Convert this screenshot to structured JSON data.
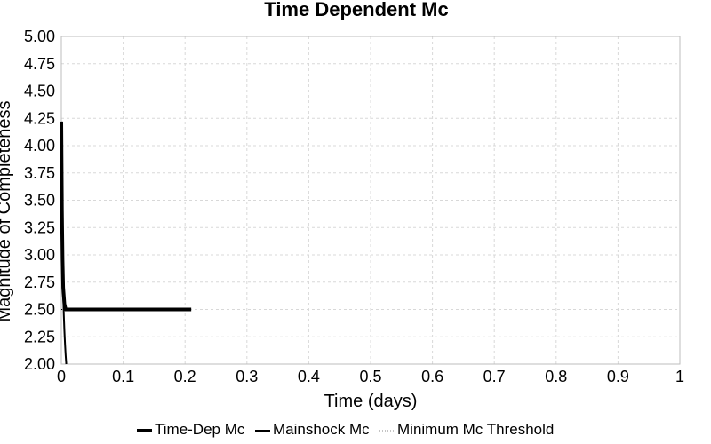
{
  "chart_data": {
    "type": "line",
    "title": "Time Dependent Mc",
    "xlabel": "Time (days)",
    "ylabel": "Magnitude of Completeness",
    "xlim": [
      0,
      1
    ],
    "ylim": [
      2.0,
      5.0
    ],
    "x_ticks": [
      "0",
      "0.1",
      "0.2",
      "0.3",
      "0.4",
      "0.5",
      "0.6",
      "0.7",
      "0.8",
      "0.9",
      "1"
    ],
    "y_ticks": [
      "2.00",
      "2.25",
      "2.50",
      "2.75",
      "3.00",
      "3.25",
      "3.50",
      "3.75",
      "4.00",
      "4.25",
      "4.50",
      "4.75",
      "5.00"
    ],
    "grid": true,
    "legend_position": "bottom",
    "series": [
      {
        "name": "Time-Dep Mc",
        "style": "thick",
        "color": "#000000",
        "x": [
          0.0,
          0.001,
          0.002,
          0.003,
          0.005,
          0.007,
          0.009,
          0.21
        ],
        "y": [
          4.22,
          3.4,
          2.95,
          2.7,
          2.55,
          2.5,
          2.5,
          2.5
        ]
      },
      {
        "name": "Mainshock Mc",
        "style": "normal",
        "color": "#000000",
        "x": [
          0.0,
          0.001,
          0.002,
          0.003,
          0.004,
          0.005,
          0.006,
          0.007,
          0.008
        ],
        "y": [
          4.22,
          3.4,
          2.95,
          2.65,
          2.45,
          2.3,
          2.18,
          2.08,
          2.0
        ]
      },
      {
        "name": "Minimum Mc Threshold",
        "style": "dotted",
        "color": "#000000",
        "x": [
          0.0,
          0.21
        ],
        "y": [
          2.5,
          2.5
        ]
      }
    ]
  }
}
